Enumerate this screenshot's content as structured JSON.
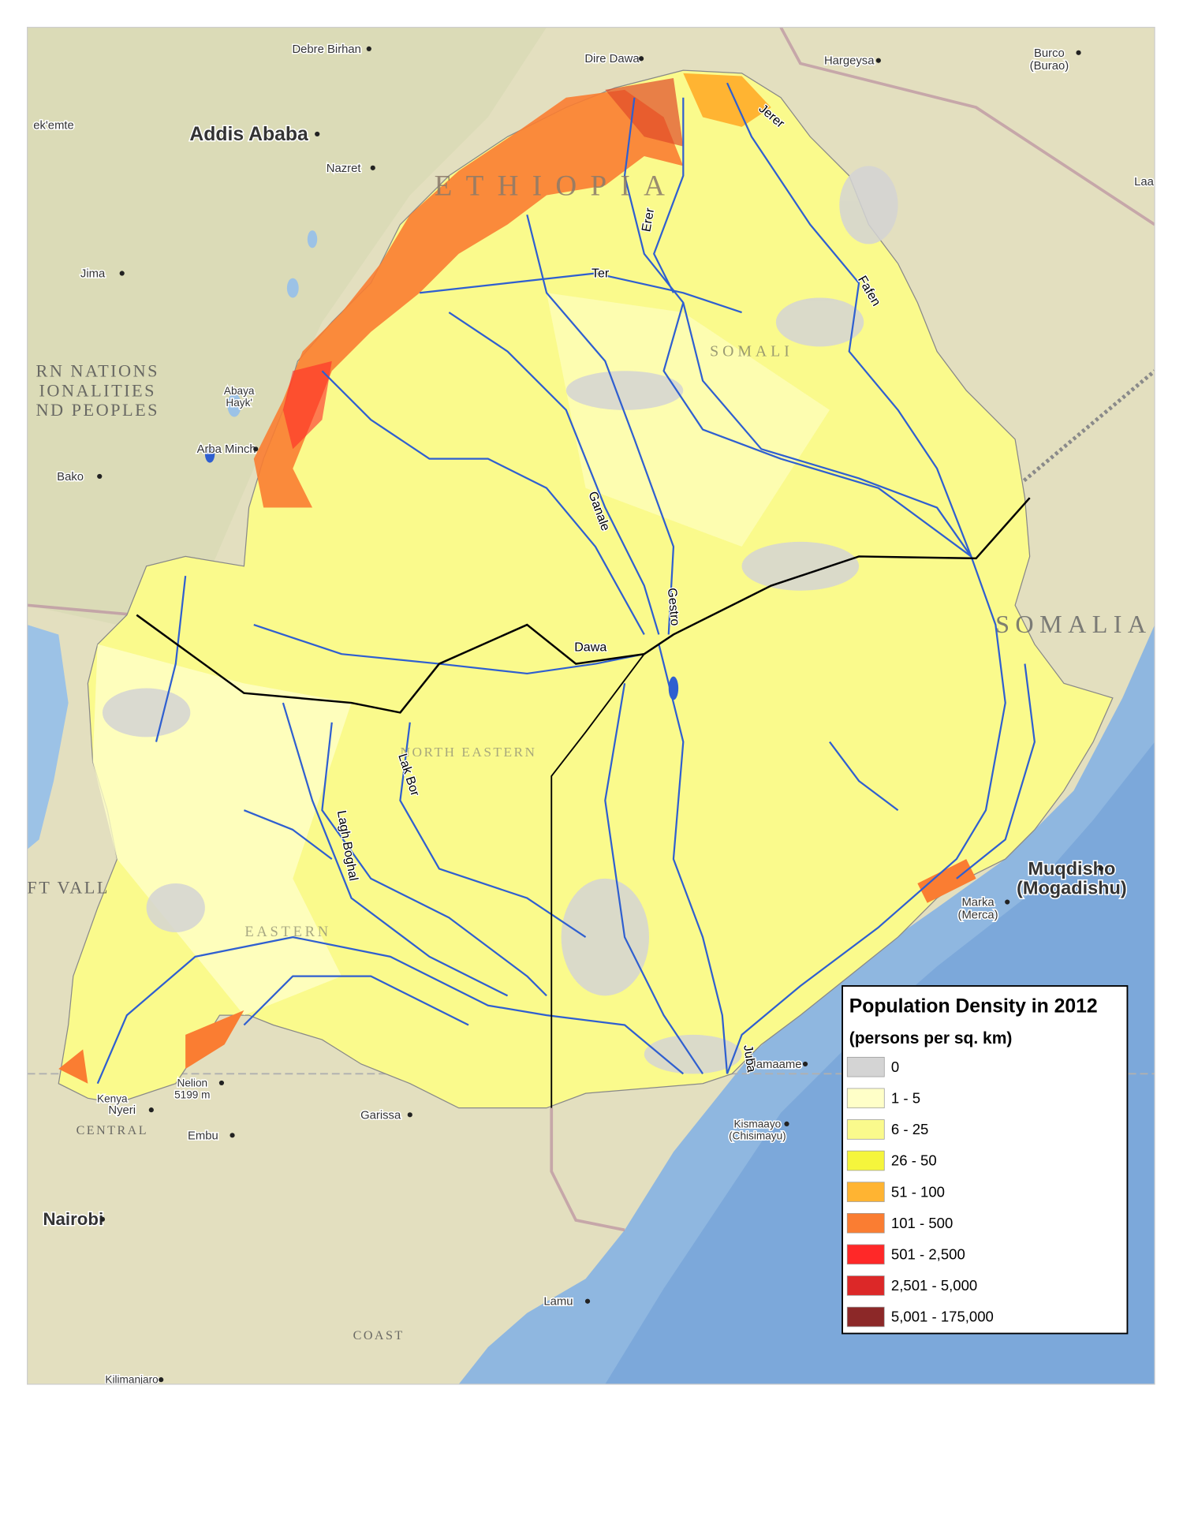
{
  "legend": {
    "title": "Population Density in 2012",
    "subtitle": "(persons per sq. km)",
    "items": [
      {
        "label": "0",
        "color": "#d4d4d4"
      },
      {
        "label": "1 - 5",
        "color": "#ffffc8"
      },
      {
        "label": "6 - 25",
        "color": "#fafa8c"
      },
      {
        "label": "26 - 50",
        "color": "#f5f53c"
      },
      {
        "label": "51 - 100",
        "color": "#ffb432"
      },
      {
        "label": "101 - 500",
        "color": "#fa7d32"
      },
      {
        "label": "501 - 2,500",
        "color": "#ff2828"
      },
      {
        "label": "2,501 - 5,000",
        "color": "#dc2828"
      },
      {
        "label": "5,001 - 175,000",
        "color": "#8c2828"
      }
    ]
  },
  "places": [
    {
      "label": "Debre Birhan"
    },
    {
      "label": "Dire Dawa"
    },
    {
      "label": "Hargeysa"
    },
    {
      "label": "Burco",
      "sublabel": "(Burao)"
    },
    {
      "label": "Addis Ababa"
    },
    {
      "label": "Nazret"
    },
    {
      "label": "ek'emte"
    },
    {
      "label": "Jima"
    },
    {
      "label": "Arba Minch"
    },
    {
      "label": "Bako"
    },
    {
      "label": "Laa"
    },
    {
      "label": "Muqdisho",
      "sublabel": "(Mogadishu)"
    },
    {
      "label": "Marka",
      "sublabel": "(Merca)"
    },
    {
      "label": "Kismaayo",
      "sublabel": "(Chisimayu)"
    },
    {
      "label": "Jamaame"
    },
    {
      "label": "Garissa"
    },
    {
      "label": "Nyeri"
    },
    {
      "label": "Embu"
    },
    {
      "label": "Nairobi"
    },
    {
      "label": "Lamu"
    },
    {
      "label": "Kilimanjaro"
    },
    {
      "label": "Nelion",
      "sublabel": "5199 m"
    },
    {
      "label": "Kenya"
    },
    {
      "label": "Abaya",
      "sublabel": "Hayk'"
    }
  ],
  "regions": [
    {
      "label": "ETHIOPIA"
    },
    {
      "label": "SOMALIA"
    },
    {
      "label": "SOMALI"
    },
    {
      "label": "EASTERN"
    },
    {
      "label": "NORTH EASTERN"
    },
    {
      "label": "CENTRAL"
    },
    {
      "label": "COAST"
    },
    {
      "label": "RN NATIONS"
    },
    {
      "label": "IONALITIES"
    },
    {
      "label": "ND PEOPLES"
    },
    {
      "label": "FT VALL"
    }
  ],
  "rivers": [
    {
      "label": "Jerer"
    },
    {
      "label": "Erer"
    },
    {
      "label": "Ter"
    },
    {
      "label": "Fafen"
    },
    {
      "label": "Ganale"
    },
    {
      "label": "Gestro"
    },
    {
      "label": "Dawa"
    },
    {
      "label": "Lak Bor"
    },
    {
      "label": "Lagh Boghal"
    },
    {
      "label": "Juba"
    }
  ]
}
